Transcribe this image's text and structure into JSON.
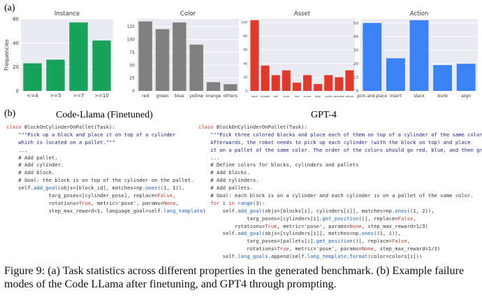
{
  "figure": {
    "part_a_label": "(a)",
    "part_b_label": "(b)",
    "caption": "Figure 9: (a) Task statistics across different properties in the generated benchmark. (b) Example failure modes of the Code LLama after finetuning, and GPT4 through prompting."
  },
  "colors": {
    "instance": "#19a35a",
    "color": "#808080",
    "asset": "#e03a2c",
    "action": "#3b82f6",
    "panel_bg": "#eaeaf2",
    "grid": "#ffffff"
  },
  "chart_data": [
    {
      "type": "bar",
      "title": "Instance",
      "ylabel": "Frequencies",
      "categories": [
        "<=4",
        ">=5",
        ">=7",
        ">=10"
      ],
      "values": [
        23,
        26,
        57,
        42
      ],
      "ylim": [
        0,
        60
      ],
      "yticks": [
        0,
        20,
        40,
        60
      ],
      "grid": true
    },
    {
      "type": "bar",
      "title": "Color",
      "categories": [
        "red",
        "green",
        "blue",
        "yellow",
        "orange",
        "others"
      ],
      "values": [
        135,
        120,
        133,
        90,
        17,
        13
      ],
      "ylim": [
        0,
        140
      ],
      "yticks": [
        0,
        25,
        50,
        75,
        100,
        125
      ],
      "grid": true
    },
    {
      "type": "bar",
      "title": "Asset",
      "categories": [
        "block",
        "cylinder",
        "ball",
        "zone",
        "line",
        "corner",
        "bowl",
        "pallet",
        "container",
        "others"
      ],
      "values": [
        103,
        37,
        23,
        30,
        12,
        23,
        10,
        23,
        20,
        30
      ],
      "ylim": [
        0,
        105
      ],
      "yticks": [
        0,
        20,
        40,
        60,
        80,
        100
      ],
      "grid": true
    },
    {
      "type": "bar",
      "title": "Action",
      "categories": [
        "pick-and-place",
        "insert",
        "stack",
        "build",
        "align"
      ],
      "values": [
        50,
        24,
        52,
        19,
        20
      ],
      "ylim": [
        0,
        53
      ],
      "yticks": [
        0,
        10,
        20,
        30,
        40,
        50
      ],
      "grid": true
    }
  ],
  "code_left": {
    "title": "Code-Llama (Finetuned)",
    "lines": [
      [
        {
          "t": "class ",
          "c": "kw"
        },
        {
          "t": "BlockOnCylinderOnPallet(Task):",
          "c": ""
        }
      ],
      [
        {
          "t": "    \"\"\"Pick up a block and place it on top of a cylinder",
          "c": "str"
        }
      ],
      [
        {
          "t": "    which is located on a pallet.\"\"\"",
          "c": "str"
        }
      ],
      [
        {
          "t": "    ...",
          "c": ""
        }
      ],
      [
        {
          "t": "    # Add pallet.",
          "c": ""
        }
      ],
      [
        {
          "t": "    # Add cylinder.",
          "c": ""
        }
      ],
      [
        {
          "t": "    # Add block.",
          "c": ""
        }
      ],
      [
        {
          "t": "    # Goal: the block is on top of the cylinder on the pallet.",
          "c": ""
        }
      ],
      [
        {
          "t": "    self.",
          "c": ""
        },
        {
          "t": "add_goal",
          "c": "fn"
        },
        {
          "t": "(objs=[block_id], matches=np.",
          "c": ""
        },
        {
          "t": "ones",
          "c": "fn"
        },
        {
          "t": "((1, 1)),",
          "c": ""
        }
      ],
      [
        {
          "t": "              targ_poses=[cylinder_pose], replace=",
          "c": ""
        },
        {
          "t": "False",
          "c": "kw"
        },
        {
          "t": ",",
          "c": ""
        }
      ],
      [
        {
          "t": "              rotations=",
          "c": ""
        },
        {
          "t": "True",
          "c": "kw"
        },
        {
          "t": ", metric='pose', params=",
          "c": ""
        },
        {
          "t": "None",
          "c": "kw"
        },
        {
          "t": ",",
          "c": ""
        }
      ],
      [
        {
          "t": "              step_max_reward=1, language_goal=self.",
          "c": ""
        },
        {
          "t": "lang_template",
          "c": "fn"
        },
        {
          "t": ")",
          "c": ""
        }
      ]
    ]
  },
  "code_right": {
    "title": "GPT-4",
    "lines": [
      [
        {
          "t": "class ",
          "c": "kw"
        },
        {
          "t": "BlockOnCylinderOnPallet(Task):",
          "c": ""
        }
      ],
      [
        {
          "t": "    \"\"\"Pick three colored blocks and place each of them on top of a cylinder of the same color.",
          "c": "str"
        }
      ],
      [
        {
          "t": "    Afterwards, the robot needs to pick up each cylinder (with the block on top) and place",
          "c": "str"
        }
      ],
      [
        {
          "t": "    it on a pallet of the same color. The order of the colors should go red, blue, and then green.\"\"\"",
          "c": "str"
        }
      ],
      [
        {
          "t": "    ...",
          "c": ""
        }
      ],
      [
        {
          "t": "    # Define colors for blocks, cylinders and pallets",
          "c": ""
        }
      ],
      [
        {
          "t": "    # Add blocks.",
          "c": ""
        }
      ],
      [
        {
          "t": "    # Add cylinders.",
          "c": ""
        }
      ],
      [
        {
          "t": "    # Add pallets.",
          "c": ""
        }
      ],
      [
        {
          "t": "    # Goal: each block is on a cylinder and each cylinder is on a pallet of the same color.",
          "c": ""
        }
      ],
      [
        {
          "t": "    for ",
          "c": "kw"
        },
        {
          "t": "i ",
          "c": ""
        },
        {
          "t": "in ",
          "c": "kw"
        },
        {
          "t": "range",
          "c": "fn"
        },
        {
          "t": "(3):",
          "c": ""
        }
      ],
      [
        {
          "t": "        self.",
          "c": ""
        },
        {
          "t": "add_goal",
          "c": "fn"
        },
        {
          "t": "(objs=[blocks[i], cylinders[i]], matches=np.",
          "c": ""
        },
        {
          "t": "ones",
          "c": "fn"
        },
        {
          "t": "((1, 2)),",
          "c": ""
        }
      ],
      [
        {
          "t": "                targ_poses=[cylinders[i].",
          "c": ""
        },
        {
          "t": "get_position",
          "c": "fn"
        },
        {
          "t": "()], replace=",
          "c": ""
        },
        {
          "t": "False",
          "c": "kw"
        },
        {
          "t": ",",
          "c": ""
        }
      ],
      [
        {
          "t": "            rotations=",
          "c": ""
        },
        {
          "t": "True",
          "c": "kw"
        },
        {
          "t": ", metric='pose', params=",
          "c": ""
        },
        {
          "t": "None",
          "c": "kw"
        },
        {
          "t": ", step_max_reward=1/3)",
          "c": ""
        }
      ],
      [
        {
          "t": "        self.",
          "c": ""
        },
        {
          "t": "add_goal",
          "c": "fn"
        },
        {
          "t": "(objs=[cylinders[i]], matches=np.",
          "c": ""
        },
        {
          "t": "ones",
          "c": "fn"
        },
        {
          "t": "((1, 1)),",
          "c": ""
        }
      ],
      [
        {
          "t": "                targ_poses=[pallets[i].",
          "c": ""
        },
        {
          "t": "get_position",
          "c": "fn"
        },
        {
          "t": "()], replace=",
          "c": ""
        },
        {
          "t": "False",
          "c": "kw"
        },
        {
          "t": ",",
          "c": ""
        }
      ],
      [
        {
          "t": "                rotations=",
          "c": ""
        },
        {
          "t": "True",
          "c": "kw"
        },
        {
          "t": ", metric='pose', params=",
          "c": ""
        },
        {
          "t": "None",
          "c": "kw"
        },
        {
          "t": ", step_max_reward=1/3)",
          "c": ""
        }
      ],
      [
        {
          "t": "        self.",
          "c": ""
        },
        {
          "t": "lang_goals",
          "c": "fn"
        },
        {
          "t": ".append(self.",
          "c": ""
        },
        {
          "t": "lang_template",
          "c": "fn"
        },
        {
          "t": ".",
          "c": ""
        },
        {
          "t": "format",
          "c": "fn"
        },
        {
          "t": "(color=colors[i]))",
          "c": ""
        }
      ]
    ]
  }
}
